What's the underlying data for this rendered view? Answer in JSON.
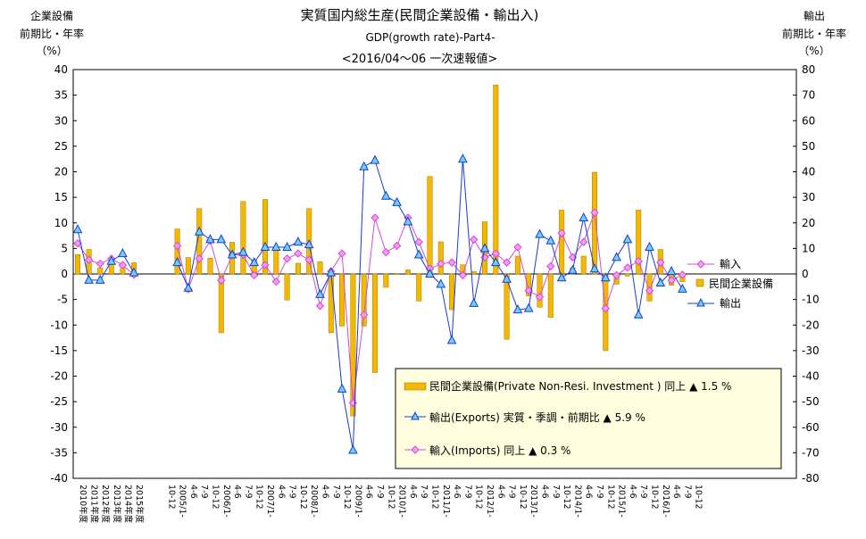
{
  "chart_data": {
    "type": "bar",
    "title_lines": [
      "実質国内総生産(民間企業設備・輸出入)",
      "GDP(growth rate)-Part4-",
      "<2016/04～06 一次速報値>"
    ],
    "left_axis_label": [
      "企業設備",
      "前期比・年率",
      "（%）"
    ],
    "right_axis_label": [
      "輸出",
      "前期比・年率",
      "（%）"
    ],
    "ylim_left": [
      -40,
      40
    ],
    "ylim_right": [
      -80,
      80
    ],
    "y_ticks_left": [
      40,
      35,
      30,
      25,
      20,
      15,
      10,
      5,
      0,
      -5,
      -10,
      -15,
      -20,
      -25,
      -30,
      -35,
      -40
    ],
    "y_ticks_right": [
      80,
      70,
      60,
      50,
      40,
      30,
      20,
      10,
      0,
      -10,
      -20,
      -30,
      -40,
      -50,
      -60,
      -70,
      -80
    ],
    "grid": false,
    "legend_position": "right",
    "legend_entries": [
      "輸入",
      "民間企業設備",
      "輸出"
    ],
    "note_box": [
      "民間企業設備(Private Non-Resi. Investment ) 同上 ▲ 1.5 %",
      "輸出(Exports) 実質・季調・前期比 ▲ 5.9 %",
      "輸入(Imports) 同上 ▲ 0.3 %"
    ],
    "annual_labels": [
      "2010年度",
      "2011年度",
      "2012年度",
      "2013年度",
      "2014年度",
      "2015年度"
    ],
    "quarter_labels": [
      "10-12",
      "2005/1-",
      "4-6",
      "7-9",
      "10-12",
      "2006/1-",
      "4-6",
      "7-9",
      "10-12",
      "2007/1-",
      "4-6",
      "7-9",
      "10-12",
      "2008/1-",
      "4-6",
      "7-9",
      "10-12",
      "2009/1-",
      "4-6",
      "7-9",
      "10-12",
      "2010/1-",
      "4-6",
      "7-9",
      "10-12",
      "2011/1-",
      "4-6",
      "7-9",
      "10-12",
      "2012/1-",
      "4-6",
      "7-9",
      "10-12",
      "2013/1-",
      "4-6",
      "7-9",
      "10-12",
      "2014/1-",
      "4-6",
      "7-9",
      "10-12",
      "2015/1-",
      "4-6",
      "7-9",
      "10-12",
      "2016/1-",
      "4-6",
      "7-9",
      "10-12"
    ],
    "series": [
      {
        "name": "民間企業設備",
        "axis": "left",
        "color": "#f5b800",
        "annual_values": [
          3.8,
          4.8,
          1.2,
          2.8,
          1.1,
          2.2
        ],
        "quarterly_values": [
          null,
          8.8,
          3.2,
          12.8,
          3.1,
          -11.5,
          6.2,
          14.2,
          2.7,
          14.6,
          4.7,
          -5.1,
          2.1,
          12.8,
          2.4,
          -11.5,
          -10.2,
          -27.8,
          -10.2,
          -19.3,
          -2.6,
          -0.1,
          0.8,
          -5.3,
          19.1,
          6.3,
          -7.0,
          1.8,
          0.5,
          10.2,
          37.0,
          -12.8,
          3.5,
          -4.3,
          -6.5,
          -8.5,
          12.5,
          1.2,
          3.5,
          19.9,
          -15.0,
          -2.0,
          -0.4,
          12.5,
          -5.3,
          4.8,
          -2.2,
          -1.5,
          null
        ]
      },
      {
        "name": "輸出",
        "axis": "right",
        "color": "#1a3bd6",
        "annual_values": [
          17.4,
          -2.4,
          -2.4,
          5.0,
          8.0,
          0.5
        ],
        "quarterly_values": [
          null,
          4.5,
          -5.5,
          16.5,
          13.5,
          13.5,
          7.5,
          8.5,
          4.5,
          10.5,
          10.5,
          10.5,
          12.5,
          11.5,
          -8.0,
          0.5,
          -45.0,
          -69.0,
          42.0,
          44.5,
          30.5,
          28.0,
          20.5,
          7.5,
          0.0,
          -4.0,
          -26.0,
          45.0,
          -11.5,
          10.0,
          4.5,
          -2.0,
          -14.0,
          -13.5,
          15.5,
          13.0,
          -1.5,
          1.5,
          22.0,
          2.0,
          -1.5,
          6.5,
          13.5,
          -16.0,
          10.5,
          -3.5,
          1.0,
          -5.9,
          null
        ]
      },
      {
        "name": "輸入",
        "axis": "right",
        "color": "#d44bd4",
        "annual_values": [
          12.0,
          5.5,
          4.0,
          6.0,
          3.5,
          -0.3
        ],
        "quarterly_values": [
          null,
          11.0,
          -6.0,
          6.0,
          13.0,
          -2.5,
          7.5,
          7.5,
          -0.5,
          3.5,
          -3.0,
          6.0,
          8.0,
          5.5,
          -12.5,
          1.0,
          8.0,
          -50.5,
          -16.0,
          22.0,
          8.5,
          11.0,
          22.0,
          12.5,
          2.0,
          4.0,
          4.5,
          -0.5,
          13.5,
          6.5,
          8.0,
          4.5,
          10.5,
          -6.5,
          -9.0,
          3.0,
          16.0,
          6.5,
          12.5,
          24.0,
          -13.5,
          -0.5,
          2.5,
          5.0,
          -6.5,
          4.5,
          -2.5,
          -0.3,
          null
        ]
      }
    ]
  }
}
